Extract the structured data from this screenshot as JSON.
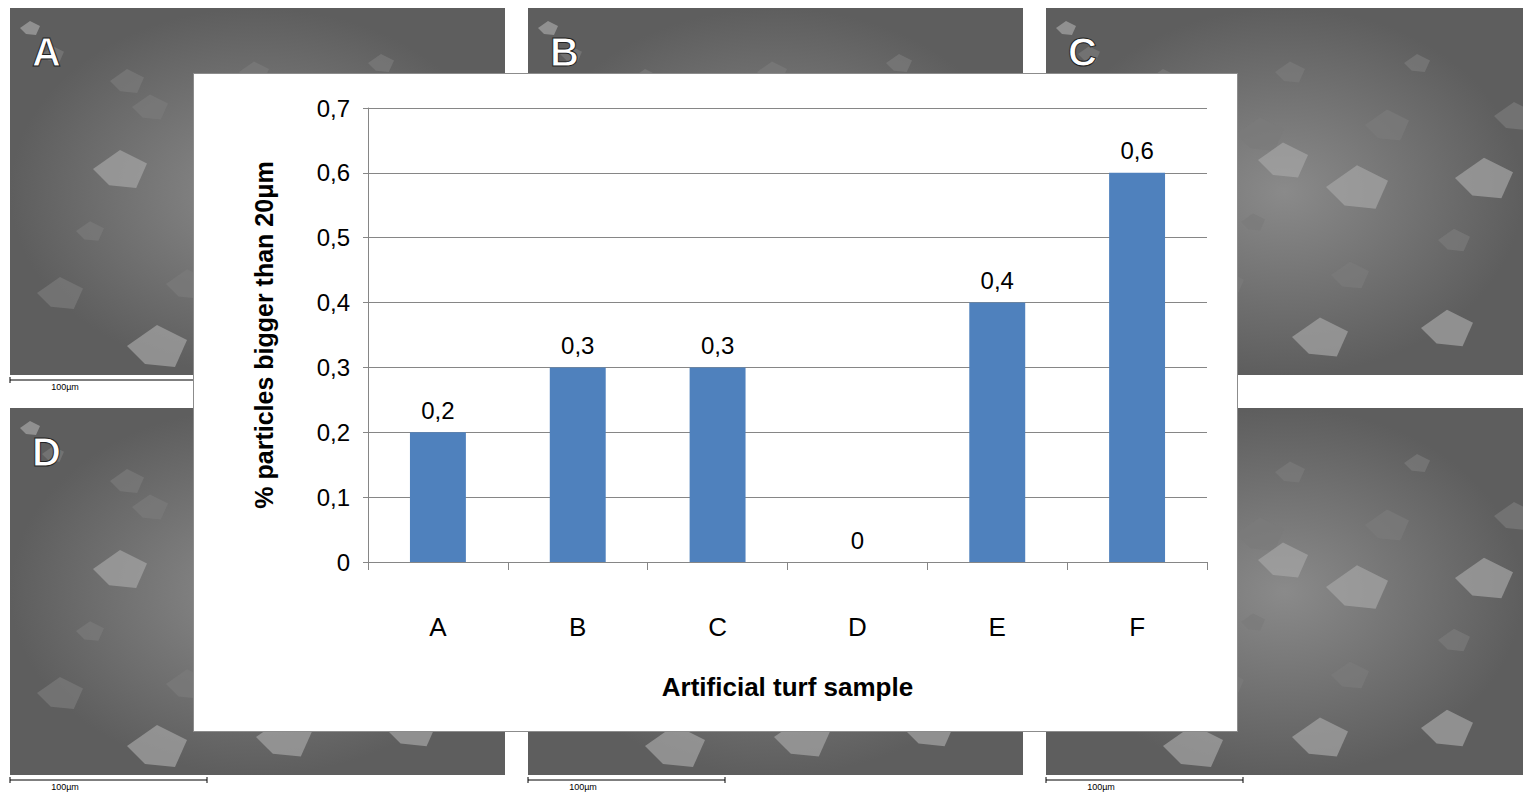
{
  "chart_data": {
    "type": "bar",
    "categories": [
      "A",
      "B",
      "C",
      "D",
      "E",
      "F"
    ],
    "values": [
      0.2,
      0.3,
      0.3,
      0,
      0.4,
      0.6
    ],
    "value_labels": [
      "0,2",
      "0,3",
      "0,3",
      "0",
      "0,4",
      "0,6"
    ],
    "color": "#4f81bd",
    "x_label": "Artificial turf sample",
    "y_label": "% particles bigger than 20μm",
    "ylim": [
      0,
      0.7
    ],
    "yticks": [
      0,
      {
        "value": 0.1,
        "label": "0,1"
      },
      {
        "value": 0.2,
        "label": "0,2"
      },
      {
        "value": 0.3,
        "label": "0,3"
      },
      {
        "value": 0.4,
        "label": "0,4"
      },
      {
        "value": 0.5,
        "label": "0,5"
      },
      {
        "value": 0.6,
        "label": "0,6"
      },
      {
        "value": 0.7,
        "label": "0,7"
      }
    ],
    "grid": true,
    "data_labels": true
  },
  "panel_labels": [
    "A",
    "B",
    "C",
    "D"
  ],
  "scale_bar_label": "100µm"
}
